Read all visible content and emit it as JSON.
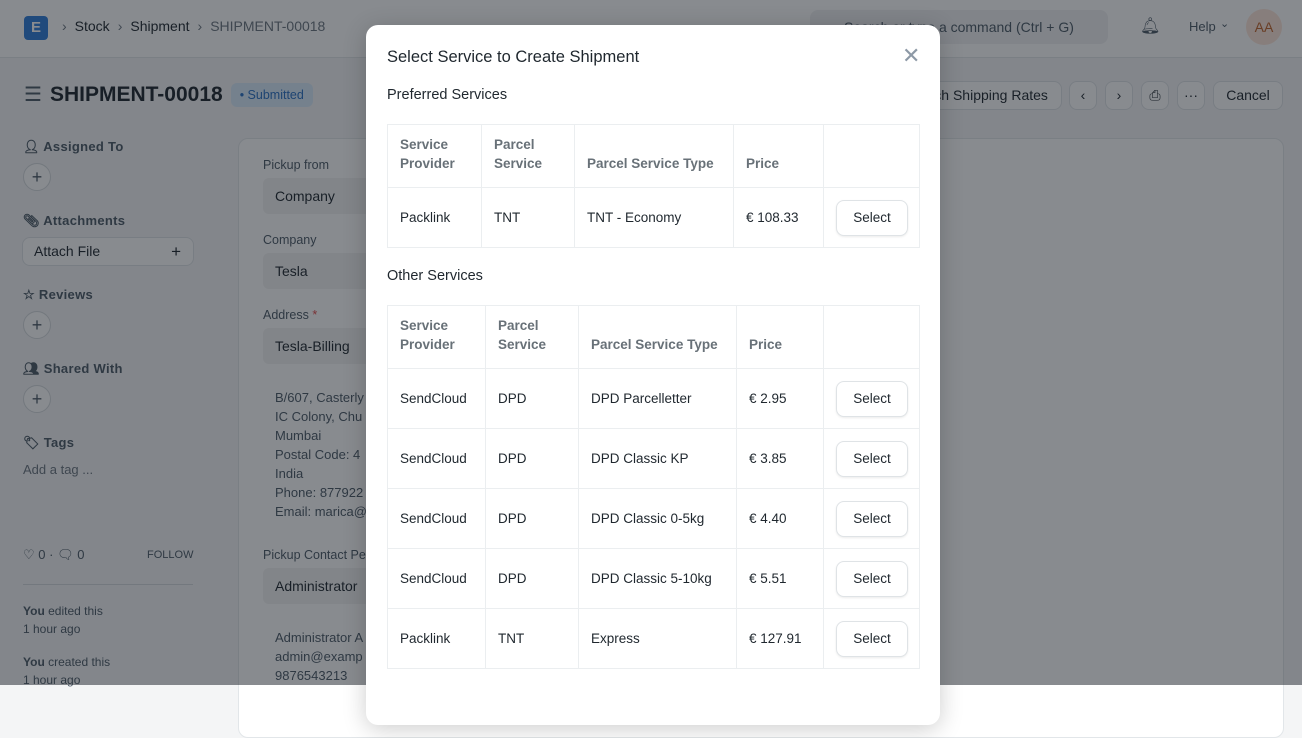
{
  "topbar": {
    "breadcrumbs": [
      "Stock",
      "Shipment",
      "SHIPMENT-00018"
    ],
    "search_placeholder": "Search or type a command (Ctrl + G)",
    "help": "Help",
    "avatar": "AA",
    "logo": "E"
  },
  "page": {
    "title": "SHIPMENT-00018",
    "status": "Submitted",
    "fetch_rates": "Fetch Shipping Rates",
    "cancel": "Cancel",
    "more": "···"
  },
  "sidebar": {
    "assigned_to": "Assigned To",
    "attachments": "Attachments",
    "attach_file": "Attach File",
    "reviews": "Reviews",
    "shared_with": "Shared With",
    "tags": "Tags",
    "add_tag": "Add a tag ...",
    "likes": "0",
    "comments": "0",
    "follow": "FOLLOW",
    "activity": [
      {
        "who": "You",
        "what": " edited this",
        "when": "1 hour ago"
      },
      {
        "who": "You",
        "what": " created this",
        "when": "1 hour ago"
      }
    ]
  },
  "form": {
    "pickup_from_label": "Pickup from",
    "pickup_from": "Company",
    "company_label": "Company",
    "company": "Tesla",
    "address_label": "Address",
    "address": "Tesla-Billing",
    "address_lines": [
      "B/607, Casterly",
      "IC Colony, Chu",
      "Mumbai",
      "Postal Code: 4",
      "India",
      "Phone: 877922",
      "Email: marica@"
    ],
    "contact_label": "Pickup Contact Pe",
    "contact": "Administrator",
    "contact_lines": [
      "Administrator A",
      "admin@examp",
      "9876543213"
    ]
  },
  "modal": {
    "title": "Select Service to Create Shipment",
    "preferred_heading": "Preferred Services",
    "other_heading": "Other Services",
    "select_label": "Select",
    "columns": [
      "Service Provider",
      "Parcel Service",
      "Parcel Service Type",
      "Price",
      ""
    ],
    "preferred": [
      [
        "Packlink",
        "TNT",
        "TNT - Economy",
        "€ 108.33"
      ]
    ],
    "other": [
      [
        "SendCloud",
        "DPD",
        "DPD Parcelletter",
        "€ 2.95"
      ],
      [
        "SendCloud",
        "DPD",
        "DPD Classic KP",
        "€ 3.85"
      ],
      [
        "SendCloud",
        "DPD",
        "DPD Classic 0-5kg",
        "€ 4.40"
      ],
      [
        "SendCloud",
        "DPD",
        "DPD Classic 5-10kg",
        "€ 5.51"
      ],
      [
        "Packlink",
        "TNT",
        "Express",
        "€ 127.91"
      ]
    ]
  }
}
